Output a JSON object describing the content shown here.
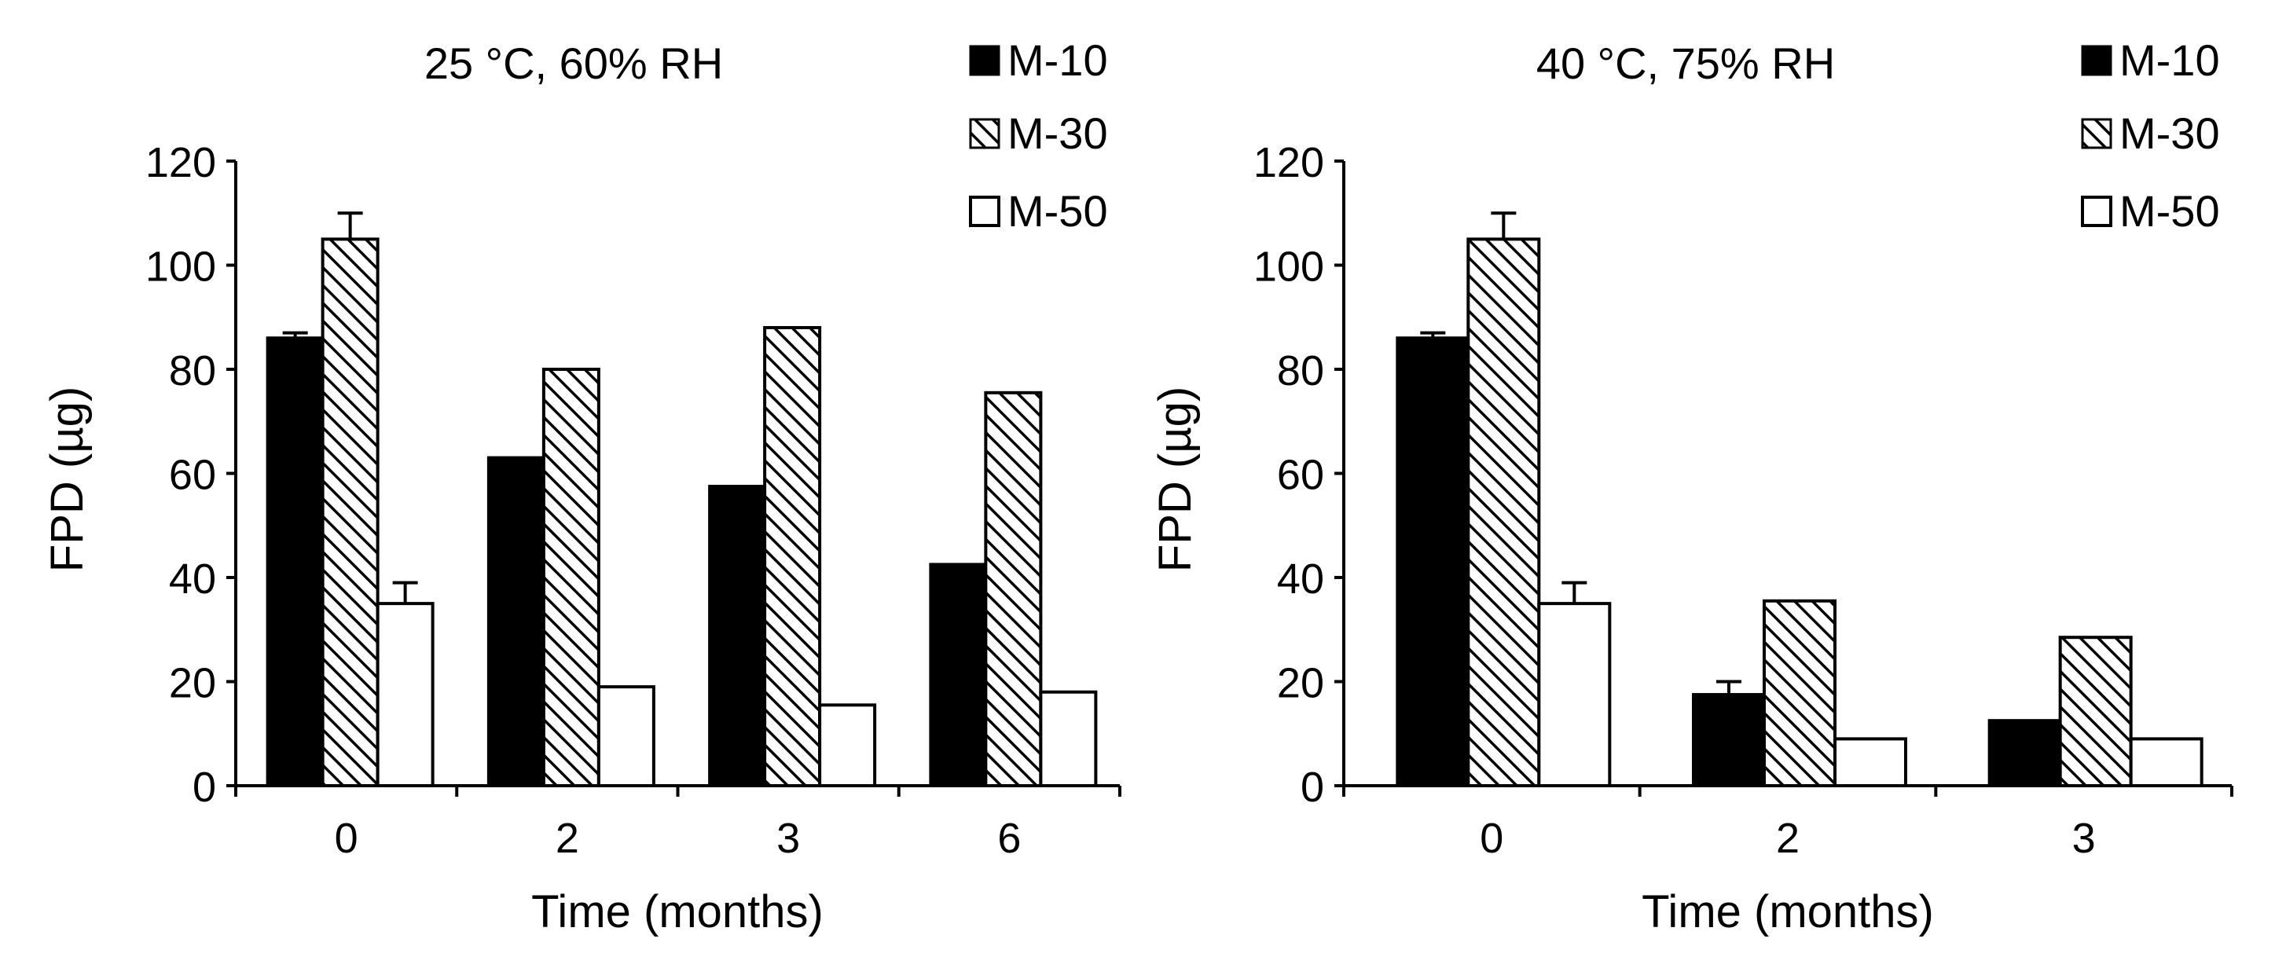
{
  "chart_data": [
    {
      "type": "bar",
      "title": "25 °C, 60% RH",
      "xlabel": "Time (months)",
      "ylabel": "FPD (µg)",
      "ylim": [
        0,
        120
      ],
      "yticks": [
        0,
        20,
        40,
        60,
        80,
        100,
        120
      ],
      "categories": [
        "0",
        "2",
        "3",
        "6"
      ],
      "legend_position": "top-right",
      "series": [
        {
          "name": "M-10",
          "pattern": "solid",
          "values": [
            86,
            63,
            57.5,
            42.5
          ],
          "errors": [
            1,
            0,
            0,
            0
          ]
        },
        {
          "name": "M-30",
          "pattern": "hatched",
          "values": [
            105,
            80,
            88,
            75.5
          ],
          "errors": [
            5,
            0,
            0,
            0
          ]
        },
        {
          "name": "M-50",
          "pattern": "open",
          "values": [
            35,
            19,
            15.5,
            18
          ],
          "errors": [
            4,
            0,
            0,
            0
          ]
        }
      ]
    },
    {
      "type": "bar",
      "title": "40 °C, 75% RH",
      "xlabel": "Time (months)",
      "ylabel": "FPD (µg)",
      "ylim": [
        0,
        120
      ],
      "yticks": [
        0,
        20,
        40,
        60,
        80,
        100,
        120
      ],
      "categories": [
        "0",
        "2",
        "3"
      ],
      "legend_position": "top-right",
      "series": [
        {
          "name": "M-10",
          "pattern": "solid",
          "values": [
            86,
            17.5,
            12.5
          ],
          "errors": [
            1,
            2.5,
            0
          ]
        },
        {
          "name": "M-30",
          "pattern": "hatched",
          "values": [
            105,
            35.5,
            28.5
          ],
          "errors": [
            5,
            0,
            0
          ]
        },
        {
          "name": "M-50",
          "pattern": "open",
          "values": [
            35,
            9,
            9
          ],
          "errors": [
            4,
            0,
            0
          ]
        }
      ]
    }
  ],
  "colors": {
    "solid_fill": "#000000",
    "open_fill": "#ffffff",
    "stroke": "#000000",
    "hatch_line": "#000000"
  }
}
